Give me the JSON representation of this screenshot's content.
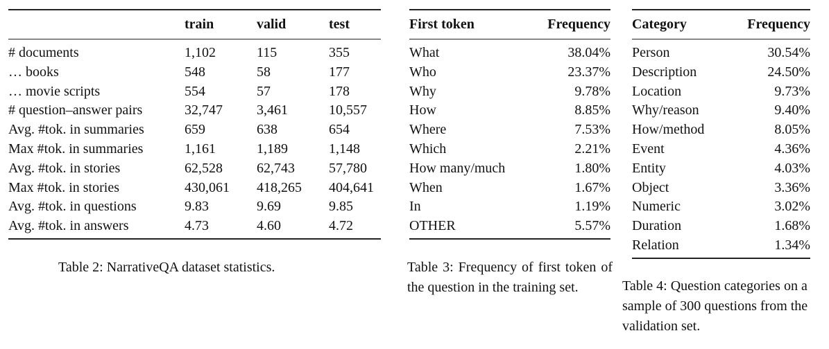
{
  "table2": {
    "headers": [
      "",
      "train",
      "valid",
      "test"
    ],
    "rows": [
      [
        "# documents",
        "1,102",
        "115",
        "355"
      ],
      [
        "… books",
        "548",
        "58",
        "177"
      ],
      [
        "… movie scripts",
        "554",
        "57",
        "178"
      ],
      [
        "# question–answer pairs",
        "32,747",
        "3,461",
        "10,557"
      ],
      [
        "Avg. #tok. in summaries",
        "659",
        "638",
        "654"
      ],
      [
        "Max #tok. in summaries",
        "1,161",
        "1,189",
        "1,148"
      ],
      [
        "Avg. #tok. in stories",
        "62,528",
        "62,743",
        "57,780"
      ],
      [
        "Max #tok. in stories",
        "430,061",
        "418,265",
        "404,641"
      ],
      [
        "Avg. #tok. in questions",
        "9.83",
        "9.69",
        "9.85"
      ],
      [
        "Avg. #tok. in answers",
        "4.73",
        "4.60",
        "4.72"
      ]
    ],
    "caption": "Table 2: NarrativeQA dataset statistics."
  },
  "table3": {
    "headers": [
      "First token",
      "Frequency"
    ],
    "rows": [
      [
        "What",
        "38.04%"
      ],
      [
        "Who",
        "23.37%"
      ],
      [
        "Why",
        "9.78%"
      ],
      [
        "How",
        "8.85%"
      ],
      [
        "Where",
        "7.53%"
      ],
      [
        "Which",
        "2.21%"
      ],
      [
        "How many/much",
        "1.80%"
      ],
      [
        "When",
        "1.67%"
      ],
      [
        "In",
        "1.19%"
      ],
      [
        "OTHER",
        "5.57%"
      ]
    ],
    "caption": "Table 3: Frequency of first token of the question in the training set."
  },
  "table4": {
    "headers": [
      "Category",
      "Frequency"
    ],
    "rows": [
      [
        "Person",
        "30.54%"
      ],
      [
        "Description",
        "24.50%"
      ],
      [
        "Location",
        "9.73%"
      ],
      [
        "Why/reason",
        "9.40%"
      ],
      [
        "How/method",
        "8.05%"
      ],
      [
        "Event",
        "4.36%"
      ],
      [
        "Entity",
        "4.03%"
      ],
      [
        "Object",
        "3.36%"
      ],
      [
        "Numeric",
        "3.02%"
      ],
      [
        "Duration",
        "1.68%"
      ],
      [
        "Relation",
        "1.34%"
      ]
    ],
    "caption": "Table 4: Question categories on a sample of 300 questions from the validation set."
  }
}
